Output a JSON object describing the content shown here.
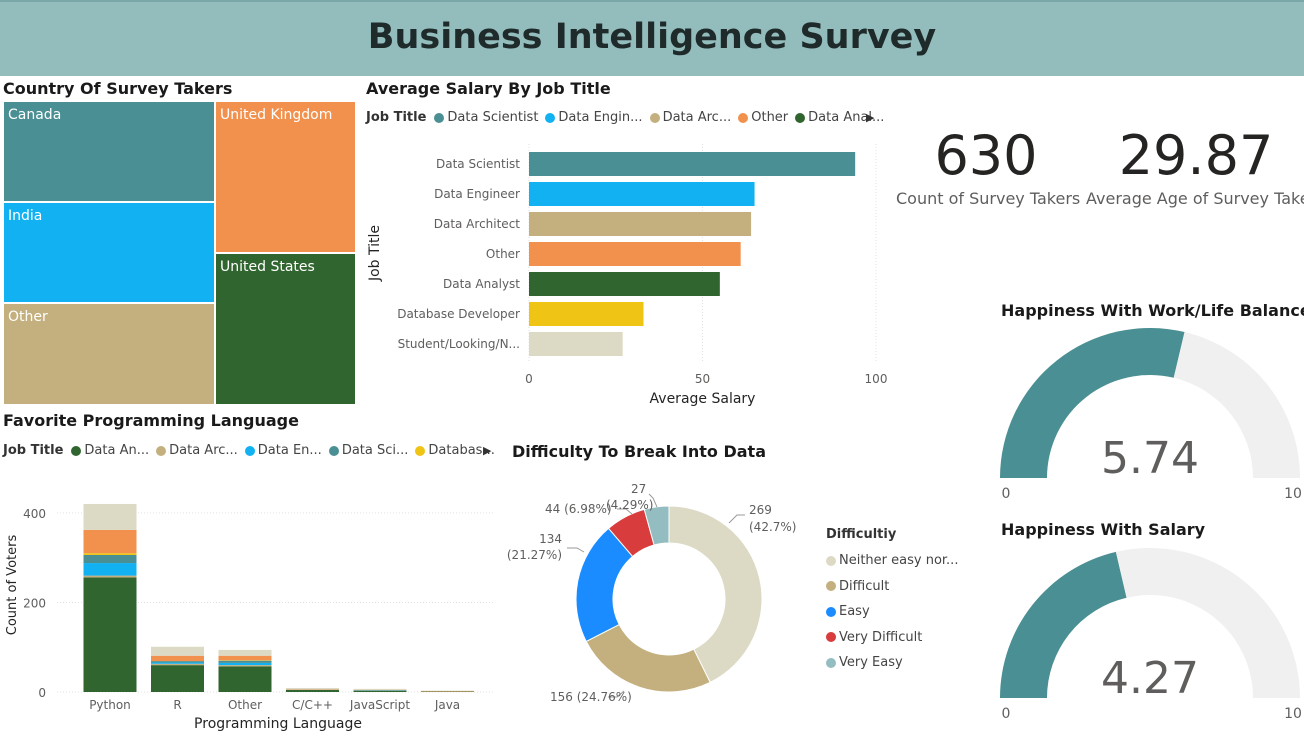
{
  "header": {
    "title": "Business Intelligence  Survey"
  },
  "treemap": {
    "title": "Country Of Survey Takers",
    "cells": [
      {
        "label": "Canada",
        "color": "#4a8f93"
      },
      {
        "label": "India",
        "color": "#12b1f1"
      },
      {
        "label": "Other",
        "color": "#c4b07e"
      },
      {
        "label": "United Kingdom",
        "color": "#f2914d"
      },
      {
        "label": "United States",
        "color": "#31652f"
      }
    ]
  },
  "salary_chart": {
    "title": "Average Salary By Job Title",
    "legend_title": "Job Title",
    "legend_items": [
      {
        "label": "Data Scientist",
        "color": "#4a8f93"
      },
      {
        "label": "Data Engin...",
        "color": "#12b1f1"
      },
      {
        "label": "Data Arc...",
        "color": "#c4b07e"
      },
      {
        "label": "Other",
        "color": "#f2914d"
      },
      {
        "label": "Data Anal...",
        "color": "#31652f"
      }
    ],
    "ylabel": "Job Title",
    "xlabel": "Average Salary",
    "categories": [
      "Data Scientist",
      "Data Engineer",
      "Data Architect",
      "Other",
      "Data Analyst",
      "Database Developer",
      "Student/Looking/N..."
    ],
    "values": [
      94,
      65,
      64,
      61,
      55,
      33,
      27
    ],
    "colors": [
      "#4a8f93",
      "#12b1f1",
      "#c4b07e",
      "#f2914d",
      "#31652f",
      "#f0c414",
      "#dcdac5"
    ],
    "xticks": [
      "0",
      "50",
      "100"
    ],
    "xlim": [
      0,
      100
    ]
  },
  "kpis": {
    "count": {
      "value": "630",
      "label": "Count of Survey Takers"
    },
    "age": {
      "value": "29.87",
      "label": "Average Age of Survey Taker"
    }
  },
  "gauge_work_life": {
    "title": "Happiness With Work/Life Balance",
    "value": 5.74,
    "display": "5.74",
    "min_label": "0",
    "max_label": "10",
    "min": 0,
    "max": 10,
    "fill_color": "#4a8f93",
    "track_color": "#f0f0f0"
  },
  "gauge_salary": {
    "title": "Happiness With Salary",
    "value": 4.27,
    "display": "4.27",
    "min_label": "0",
    "max_label": "10",
    "min": 0,
    "max": 10,
    "fill_color": "#4a8f93",
    "track_color": "#f0f0f0"
  },
  "lang_chart": {
    "title": "Favorite Programming Language",
    "legend_title": "Job Title",
    "legend_items": [
      {
        "label": "Data An...",
        "color": "#31652f"
      },
      {
        "label": "Data Arc...",
        "color": "#c4b07e"
      },
      {
        "label": "Data En...",
        "color": "#12b1f1"
      },
      {
        "label": "Data Sci...",
        "color": "#4a8f93"
      },
      {
        "label": "Databas...",
        "color": "#f0c414"
      }
    ],
    "ylabel": "Count of Voters",
    "xlabel": "Programming Language",
    "categories": [
      "Python",
      "R",
      "Other",
      "C/C++",
      "JavaScript",
      "Java"
    ],
    "yticks": [
      "0",
      "200",
      "400"
    ],
    "ylim": [
      0,
      440
    ],
    "stacks": [
      {
        "color": "#31652f",
        "values": [
          256,
          60,
          57,
          5,
          3,
          1
        ]
      },
      {
        "color": "#c4b07e",
        "values": [
          4,
          3,
          3,
          0,
          0,
          0
        ]
      },
      {
        "color": "#12b1f1",
        "values": [
          28,
          3,
          5,
          0,
          1,
          0
        ]
      },
      {
        "color": "#4a8f93",
        "values": [
          18,
          3,
          5,
          0,
          0,
          0
        ]
      },
      {
        "color": "#f0c414",
        "values": [
          4,
          0,
          1,
          0,
          0,
          0
        ]
      },
      {
        "color": "#f2914d",
        "values": [
          52,
          12,
          10,
          1,
          1,
          1
        ]
      },
      {
        "color": "#dcdac5",
        "values": [
          58,
          20,
          13,
          3,
          2,
          1
        ]
      }
    ]
  },
  "donut": {
    "title": "Difficulty To Break Into Data",
    "legend_title": "Difficultiy",
    "legend_items": [
      {
        "label": "Neither easy nor...",
        "color": "#dcdac5"
      },
      {
        "label": "Difficult",
        "color": "#c4b07e"
      },
      {
        "label": "Easy",
        "color": "#1a8cff"
      },
      {
        "label": "Very Difficult",
        "color": "#d83c3c"
      },
      {
        "label": "Very Easy",
        "color": "#93bdc0"
      }
    ],
    "slices": [
      {
        "value": 269,
        "pct": "(42.7%)",
        "color": "#dcdac5"
      },
      {
        "value": 156,
        "pct": "(24.76%)",
        "color": "#c4b07e"
      },
      {
        "value": 134,
        "pct": "(21.27%)",
        "color": "#1a8cff"
      },
      {
        "value": 44,
        "pct": "(6.98%)",
        "color": "#d83c3c"
      },
      {
        "value": 27,
        "pct": "(4.29%)",
        "color": "#93bdc0"
      }
    ],
    "labels": [
      "269",
      "(42.7%)",
      "156 (24.76%)",
      "134",
      "(21.27%)",
      "44 (6.98%)",
      "27",
      "(4.29%)"
    ]
  }
}
